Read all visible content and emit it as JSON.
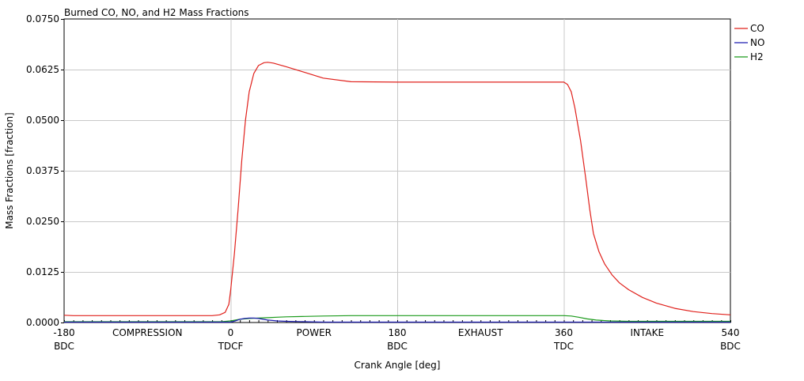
{
  "chart_data": {
    "type": "line",
    "title": "Burned CO, NO, and H2 Mass Fractions",
    "xlabel": "Crank Angle [deg]",
    "ylabel": "Mass Fractions [fraction]",
    "xlim": [
      -180,
      540
    ],
    "ylim": [
      0,
      0.075
    ],
    "grid": true,
    "legend_position": "right",
    "x_ticks": [
      {
        "value": -180,
        "label": "-180",
        "sub": "BDC"
      },
      {
        "value": 0,
        "label": "0",
        "sub": "TDCF"
      },
      {
        "value": 180,
        "label": "180",
        "sub": "BDC"
      },
      {
        "value": 360,
        "label": "360",
        "sub": "TDC"
      },
      {
        "value": 540,
        "label": "540",
        "sub": "BDC"
      }
    ],
    "stroke_labels": [
      {
        "x": -90,
        "label": "COMPRESSION"
      },
      {
        "x": 90,
        "label": "POWER"
      },
      {
        "x": 270,
        "label": "EXHAUST"
      },
      {
        "x": 450,
        "label": "INTAKE"
      }
    ],
    "y_ticks": [
      "0.0000",
      "0.0125",
      "0.0250",
      "0.0375",
      "0.0500",
      "0.0625",
      "0.0750"
    ],
    "series": [
      {
        "name": "CO",
        "color": "#e0201b",
        "x": [
          -180,
          -170,
          -20,
          -12,
          -6,
          -2,
          0,
          4,
          8,
          12,
          16,
          20,
          25,
          30,
          36,
          40,
          46,
          60,
          80,
          100,
          130,
          180,
          250,
          320,
          360,
          364,
          368,
          372,
          378,
          384,
          388,
          392,
          398,
          404,
          412,
          420,
          430,
          445,
          460,
          480,
          500,
          520,
          540
        ],
        "y": [
          0.0018,
          0.0017,
          0.0017,
          0.0019,
          0.0025,
          0.0045,
          0.008,
          0.017,
          0.028,
          0.04,
          0.05,
          0.057,
          0.0615,
          0.0635,
          0.0642,
          0.0643,
          0.0641,
          0.0632,
          0.0618,
          0.0604,
          0.0595,
          0.0594,
          0.0594,
          0.0594,
          0.0594,
          0.0588,
          0.057,
          0.053,
          0.045,
          0.035,
          0.028,
          0.022,
          0.0175,
          0.0145,
          0.0118,
          0.0098,
          0.0081,
          0.0062,
          0.0048,
          0.0035,
          0.0027,
          0.0022,
          0.0019
        ]
      },
      {
        "name": "NO",
        "color": "#1f1fb0",
        "x": [
          -180,
          0,
          5,
          10,
          15,
          20,
          25,
          30,
          35,
          40,
          45,
          50,
          60,
          80,
          100,
          120,
          540
        ],
        "y": [
          0.0001,
          0.0001,
          0.0004,
          0.0008,
          0.001,
          0.0011,
          0.0011,
          0.001,
          0.0008,
          0.0006,
          0.0005,
          0.0004,
          0.0003,
          0.0002,
          0.0001,
          0.0001,
          0.0001
        ]
      },
      {
        "name": "H2",
        "color": "#1a9a1a",
        "x": [
          -180,
          -10,
          0,
          10,
          20,
          30,
          40,
          50,
          60,
          80,
          100,
          130,
          180,
          250,
          330,
          360,
          368,
          376,
          385,
          395,
          410,
          430,
          460,
          540
        ],
        "y": [
          0.0002,
          0.0002,
          0.0004,
          0.0008,
          0.001,
          0.0011,
          0.0012,
          0.0013,
          0.0014,
          0.0015,
          0.0016,
          0.0017,
          0.0017,
          0.0017,
          0.0017,
          0.0017,
          0.0016,
          0.0013,
          0.0009,
          0.0006,
          0.0004,
          0.0003,
          0.0003,
          0.0003
        ]
      }
    ]
  }
}
